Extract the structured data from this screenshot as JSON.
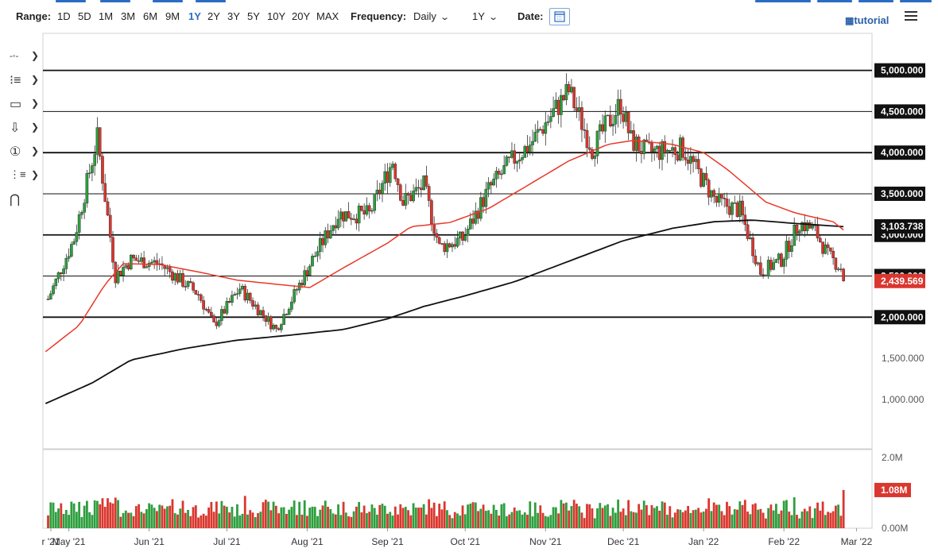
{
  "toolbar": {
    "range_label": "Range:",
    "ranges": [
      "1D",
      "5D",
      "1M",
      "3M",
      "6M",
      "9M",
      "1Y",
      "2Y",
      "3Y",
      "5Y",
      "10Y",
      "20Y",
      "MAX"
    ],
    "active_range": "1Y",
    "frequency_label": "Frequency:",
    "frequency_value": "Daily",
    "period_value": "1Y",
    "date_label": "Date:",
    "tutorial_label": "tutorial",
    "accent_color": "#2a6cc4"
  },
  "sidebar_tools": [
    {
      "icon": "crosshair-line-icon"
    },
    {
      "icon": "fibonacci-lines-icon"
    },
    {
      "icon": "rectangle-shape-icon"
    },
    {
      "icon": "arrow-down-marker-icon"
    },
    {
      "icon": "numbered-marker-icon"
    },
    {
      "icon": "pattern-tool-icon"
    },
    {
      "icon": "magnet-icon"
    }
  ],
  "chart_data": {
    "type": "candlestick",
    "price_axis_labels": [
      "5,000.000",
      "4,500.000",
      "4,000.000",
      "3,500.000",
      "3,000.000",
      "2,500.000",
      "2,000.000",
      "1,500.000",
      "1,000.000"
    ],
    "x_tick_labels": [
      "r '21",
      "May '21",
      "Jun '21",
      "Jul '21",
      "Aug '21",
      "Sep '21",
      "Oct '21",
      "Nov '21",
      "Dec '21",
      "Jan '22",
      "Feb '22",
      "Mar '22"
    ],
    "horizontal_levels": [
      5000,
      4500,
      4000,
      3500,
      3000,
      2500,
      2000
    ],
    "current_price": "2,439.569",
    "ma_200_value": "3,103.738",
    "price_range": [
      400,
      5450
    ],
    "candle_keypoints": [
      [
        "2021-04-23",
        2220
      ],
      [
        "2021-05-03",
        2950
      ],
      [
        "2021-05-12",
        4180
      ],
      [
        "2021-05-19",
        2500
      ],
      [
        "2021-05-25",
        2700
      ],
      [
        "2021-06-05",
        2650
      ],
      [
        "2021-06-20",
        2280
      ],
      [
        "2021-06-26",
        1900
      ],
      [
        "2021-07-06",
        2350
      ],
      [
        "2021-07-20",
        1850
      ],
      [
        "2021-08-03",
        2700
      ],
      [
        "2021-08-13",
        3250
      ],
      [
        "2021-08-25",
        3250
      ],
      [
        "2021-09-03",
        3900
      ],
      [
        "2021-09-07",
        3400
      ],
      [
        "2021-09-15",
        3600
      ],
      [
        "2021-09-21",
        2850
      ],
      [
        "2021-09-30",
        2950
      ],
      [
        "2021-10-10",
        3550
      ],
      [
        "2021-10-19",
        3900
      ],
      [
        "2021-10-26",
        4100
      ],
      [
        "2021-11-10",
        4750
      ],
      [
        "2021-11-19",
        4050
      ],
      [
        "2021-11-30",
        4600
      ],
      [
        "2021-12-04",
        4150
      ],
      [
        "2021-12-10",
        4000
      ],
      [
        "2021-12-24",
        4050
      ],
      [
        "2021-12-31",
        3700
      ],
      [
        "2022-01-06",
        3400
      ],
      [
        "2022-01-15",
        3300
      ],
      [
        "2022-01-23",
        2550
      ],
      [
        "2022-01-31",
        2700
      ],
      [
        "2022-02-07",
        3150
      ],
      [
        "2022-02-13",
        3050
      ],
      [
        "2022-02-18",
        2750
      ],
      [
        "2022-02-23",
        2600
      ],
      [
        "2022-02-24",
        2440
      ]
    ],
    "ma_50_color": "#e8392b",
    "ma_200_color": "#111111",
    "up_color": "#2e9e3e",
    "down_color": "#d9372f",
    "ma_50_keypoints": [
      [
        "2021-04-22",
        1580
      ],
      [
        "2021-05-05",
        1900
      ],
      [
        "2021-05-15",
        2400
      ],
      [
        "2021-05-22",
        2650
      ],
      [
        "2021-06-05",
        2640
      ],
      [
        "2021-06-20",
        2550
      ],
      [
        "2021-07-05",
        2450
      ],
      [
        "2021-07-20",
        2400
      ],
      [
        "2021-08-02",
        2360
      ],
      [
        "2021-08-15",
        2600
      ],
      [
        "2021-09-01",
        2900
      ],
      [
        "2021-09-10",
        3100
      ],
      [
        "2021-09-25",
        3150
      ],
      [
        "2021-10-10",
        3320
      ],
      [
        "2021-10-25",
        3600
      ],
      [
        "2021-11-10",
        3900
      ],
      [
        "2021-11-25",
        4100
      ],
      [
        "2021-12-05",
        4150
      ],
      [
        "2021-12-20",
        4100
      ],
      [
        "2022-01-01",
        4000
      ],
      [
        "2022-01-10",
        3800
      ],
      [
        "2022-01-25",
        3400
      ],
      [
        "2022-02-05",
        3270
      ],
      [
        "2022-02-20",
        3160
      ],
      [
        "2022-02-24",
        3060
      ]
    ],
    "ma_200_keypoints": [
      [
        "2021-04-22",
        950
      ],
      [
        "2021-05-10",
        1200
      ],
      [
        "2021-05-25",
        1480
      ],
      [
        "2021-06-15",
        1620
      ],
      [
        "2021-07-05",
        1720
      ],
      [
        "2021-07-25",
        1780
      ],
      [
        "2021-08-15",
        1850
      ],
      [
        "2021-09-01",
        1980
      ],
      [
        "2021-09-15",
        2130
      ],
      [
        "2021-10-01",
        2260
      ],
      [
        "2021-10-20",
        2430
      ],
      [
        "2021-11-10",
        2680
      ],
      [
        "2021-12-01",
        2930
      ],
      [
        "2021-12-20",
        3080
      ],
      [
        "2022-01-05",
        3160
      ],
      [
        "2022-01-20",
        3180
      ],
      [
        "2022-02-05",
        3140
      ],
      [
        "2022-02-24",
        3100
      ]
    ],
    "volume": {
      "axis_labels": [
        "2.0M",
        "1.0M",
        "0.00M"
      ],
      "current_value": "1.08M",
      "y_range": [
        0,
        2.0
      ]
    }
  }
}
